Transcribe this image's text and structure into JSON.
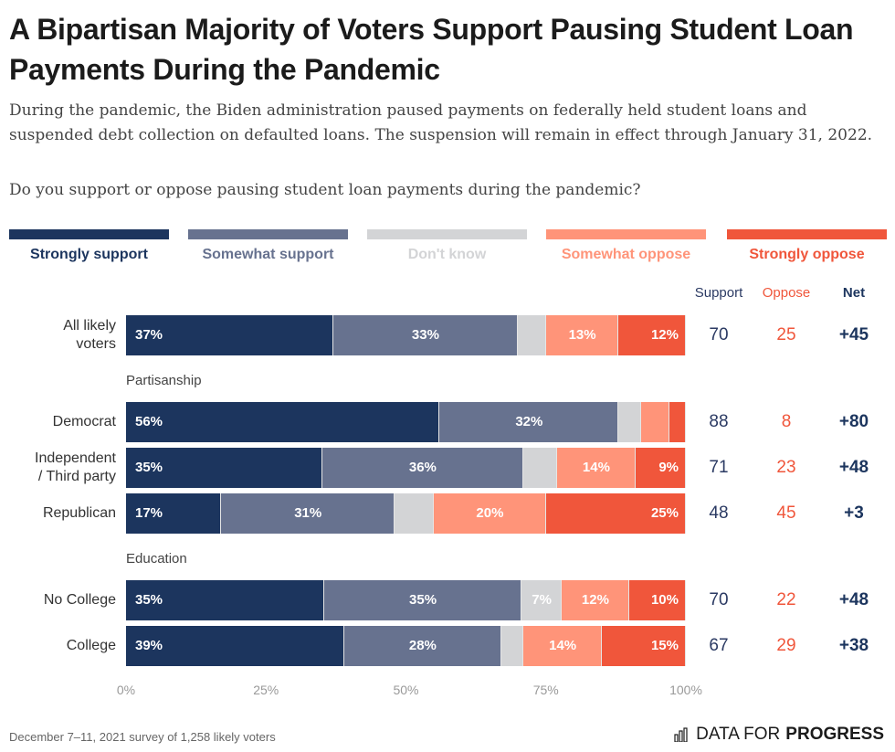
{
  "header": {
    "title": "A Bipartisan Majority of Voters Support Pausing Student Loan Payments During the Pandemic",
    "description": "During the pandemic, the Biden administration paused payments on federally held student loans and suspended debt collection on defaulted loans. The suspension will remain in effect through January 31, 2022.",
    "question": "Do you support or oppose pausing student loan payments during the pandemic?"
  },
  "colors": {
    "strongly_support": "#1c355e",
    "somewhat_support": "#67728f",
    "dont_know": "#d3d4d6",
    "somewhat_oppose": "#ff9479",
    "strongly_oppose": "#f0563b"
  },
  "columns": {
    "support": "Support",
    "oppose": "Oppose",
    "net": "Net"
  },
  "footer": {
    "note": "December 7–11, 2021 survey of 1,258 likely voters",
    "brand_prefix": "DATA FOR",
    "brand_bold": "PROGRESS"
  },
  "chart_data": {
    "type": "bar",
    "stacked": true,
    "orientation": "horizontal",
    "title": "A Bipartisan Majority of Voters Support Pausing Student Loan Payments During the Pandemic",
    "xlim": [
      0,
      100
    ],
    "x_ticks": [
      "0%",
      "25%",
      "50%",
      "75%",
      "100%"
    ],
    "legend_position": "top",
    "series_names": [
      "Strongly support",
      "Somewhat support",
      "Don't know",
      "Somewhat oppose",
      "Strongly oppose"
    ],
    "groups": [
      {
        "label": "",
        "rows": [
          {
            "label": "All likely voters",
            "values": [
              37,
              33,
              5,
              13,
              12
            ],
            "labels": [
              "37%",
              "33%",
              "",
              "13%",
              "12%"
            ],
            "support": "70",
            "oppose": "25",
            "net": "+45"
          }
        ]
      },
      {
        "label": "Partisanship",
        "rows": [
          {
            "label": "Democrat",
            "values": [
              56,
              32,
              4,
              5,
              3
            ],
            "labels": [
              "56%",
              "32%",
              "",
              "",
              ""
            ],
            "support": "88",
            "oppose": "8",
            "net": "+80"
          },
          {
            "label": "Independent / Third party",
            "values": [
              35,
              36,
              6,
              14,
              9
            ],
            "labels": [
              "35%",
              "36%",
              "",
              "14%",
              "9%"
            ],
            "support": "71",
            "oppose": "23",
            "net": "+48"
          },
          {
            "label": "Republican",
            "values": [
              17,
              31,
              7,
              20,
              25
            ],
            "labels": [
              "17%",
              "31%",
              "",
              "20%",
              "25%"
            ],
            "support": "48",
            "oppose": "45",
            "net": "+3"
          }
        ]
      },
      {
        "label": "Education",
        "rows": [
          {
            "label": "No College",
            "values": [
              35,
              35,
              7,
              12,
              10
            ],
            "labels": [
              "35%",
              "35%",
              "7%",
              "12%",
              "10%"
            ],
            "support": "70",
            "oppose": "22",
            "net": "+48"
          },
          {
            "label": "College",
            "values": [
              39,
              28,
              4,
              14,
              15
            ],
            "labels": [
              "39%",
              "28%",
              "",
              "14%",
              "15%"
            ],
            "support": "67",
            "oppose": "29",
            "net": "+38"
          }
        ]
      }
    ]
  }
}
